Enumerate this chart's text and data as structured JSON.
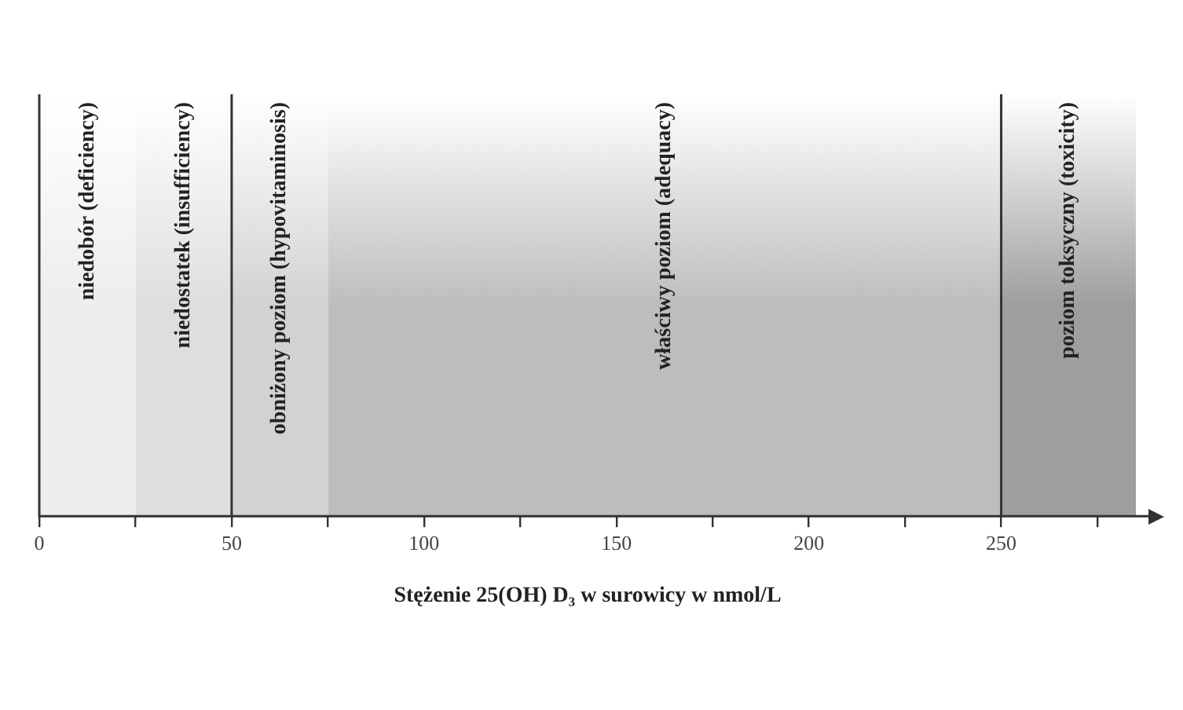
{
  "chart_data": {
    "type": "bar",
    "orientation": "horizontal",
    "stacked": true,
    "xlabel": "Stężenie 25(OH) D₃ w surowicy w nmol/L",
    "categories": [
      null
    ],
    "xlim": [
      0,
      285
    ],
    "xticks": [
      0,
      {
        "value": 25,
        "label": null
      },
      50,
      {
        "value": 75,
        "label": null
      },
      100,
      {
        "value": 125,
        "label": null
      },
      150,
      {
        "value": 175,
        "label": null
      },
      200,
      {
        "value": 225,
        "label": null
      },
      250,
      {
        "value": 275,
        "label": null
      }
    ],
    "series": [
      {
        "name": "niedobór (deficiency)",
        "color": "#ededed",
        "values": [
          25
        ]
      },
      {
        "name": "niedostatek (insufficiency)",
        "color": "#dedede",
        "values": [
          25
        ]
      },
      {
        "name": "obniżony poziom (hypovitaminosis)",
        "color": "#d2d2d2",
        "values": [
          25
        ]
      },
      {
        "name": "właściwy poziom (adequacy)",
        "color": "#bdbdbd",
        "values": [
          175
        ]
      },
      {
        "name": "poziom toksyczny (toxicity)",
        "color": "#9e9e9e",
        "values": [
          35
        ]
      }
    ],
    "ref_lines": [
      {
        "axis": "x",
        "value": 50,
        "color": "#333333"
      },
      {
        "axis": "x",
        "value": 250,
        "color": "#333333"
      }
    ],
    "legend": false
  }
}
